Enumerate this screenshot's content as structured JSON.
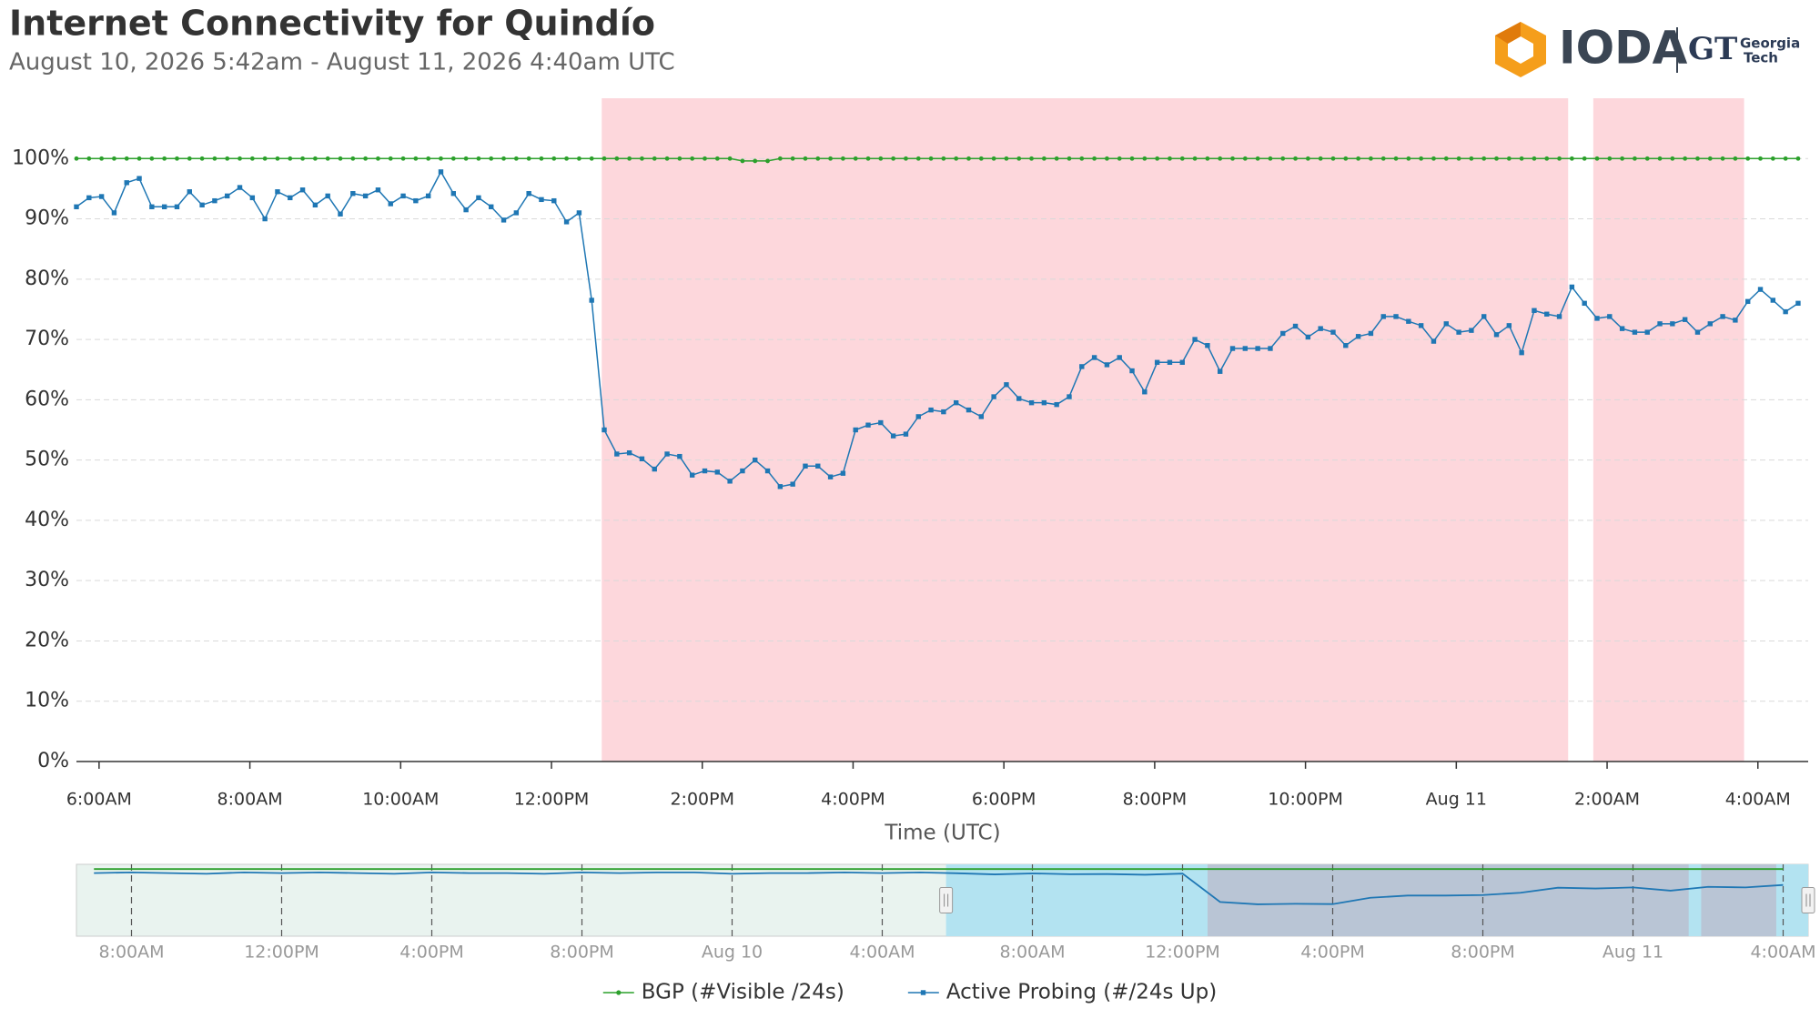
{
  "chart_data": [
    {
      "type": "line",
      "title": "Internet Connectivity for Quindío",
      "subtitle": "August 10, 2026 5:42am - August 11, 2026 4:40am UTC",
      "x_label": "Time (UTC)",
      "xlim": [
        342,
        1720
      ],
      "xticks": [
        {
          "value": 360,
          "label": "6:00AM"
        },
        {
          "value": 480,
          "label": "8:00AM"
        },
        {
          "value": 600,
          "label": "10:00AM"
        },
        {
          "value": 720,
          "label": "12:00PM"
        },
        {
          "value": 840,
          "label": "2:00PM"
        },
        {
          "value": 960,
          "label": "4:00PM"
        },
        {
          "value": 1080,
          "label": "6:00PM"
        },
        {
          "value": 1200,
          "label": "8:00PM"
        },
        {
          "value": 1320,
          "label": "10:00PM"
        },
        {
          "value": 1440,
          "label": "Aug 11"
        },
        {
          "value": 1560,
          "label": "2:00AM"
        },
        {
          "value": 1680,
          "label": "4:00AM"
        }
      ],
      "ylim": [
        0,
        110
      ],
      "yticks": [
        {
          "value": 0,
          "label": "0%"
        },
        {
          "value": 10,
          "label": "10%"
        },
        {
          "value": 20,
          "label": "20%"
        },
        {
          "value": 30,
          "label": "30%"
        },
        {
          "value": 40,
          "label": "40%"
        },
        {
          "value": 50,
          "label": "50%"
        },
        {
          "value": 60,
          "label": "60%"
        },
        {
          "value": 70,
          "label": "70%"
        },
        {
          "value": 80,
          "label": "80%"
        },
        {
          "value": 90,
          "label": "90%"
        },
        {
          "value": 100,
          "label": "100%"
        }
      ],
      "grid": true,
      "legend": "bottom",
      "shaded_ranges": [
        [
          760,
          1529
        ],
        [
          1549,
          1669
        ]
      ],
      "shade_color": "#fdd7dc",
      "x": [
        342,
        352,
        362,
        372,
        382,
        392,
        402,
        412,
        422,
        432,
        442,
        452,
        462,
        472,
        482,
        492,
        502,
        512,
        522,
        532,
        542,
        552,
        562,
        572,
        582,
        592,
        602,
        612,
        622,
        632,
        642,
        652,
        662,
        672,
        682,
        692,
        702,
        712,
        722,
        732,
        742,
        752,
        762,
        772,
        782,
        792,
        802,
        812,
        822,
        832,
        842,
        852,
        862,
        872,
        882,
        892,
        902,
        912,
        922,
        932,
        942,
        952,
        962,
        972,
        982,
        992,
        1002,
        1012,
        1022,
        1032,
        1042,
        1052,
        1062,
        1072,
        1082,
        1092,
        1102,
        1112,
        1122,
        1132,
        1142,
        1152,
        1162,
        1172,
        1182,
        1192,
        1202,
        1212,
        1222,
        1232,
        1242,
        1252,
        1262,
        1272,
        1282,
        1292,
        1302,
        1312,
        1322,
        1332,
        1342,
        1352,
        1362,
        1372,
        1382,
        1392,
        1402,
        1412,
        1422,
        1432,
        1442,
        1452,
        1462,
        1472,
        1482,
        1492,
        1502,
        1512,
        1522,
        1532,
        1542,
        1552,
        1562,
        1572,
        1582,
        1592,
        1602,
        1612,
        1622,
        1632,
        1642,
        1652,
        1662,
        1672,
        1682,
        1692,
        1702,
        1712
      ],
      "series": [
        {
          "name": "BGP (#Visible /24s)",
          "color": "#2ca02c",
          "marker": "circle",
          "values": [
            100,
            100,
            100,
            100,
            100,
            100,
            100,
            100,
            100,
            100,
            100,
            100,
            100,
            100,
            100,
            100,
            100,
            100,
            100,
            100,
            100,
            100,
            100,
            100,
            100,
            100,
            100,
            100,
            100,
            100,
            100,
            100,
            100,
            100,
            100,
            100,
            100,
            100,
            100,
            100,
            100,
            100,
            100,
            100,
            100,
            100,
            100,
            100,
            100,
            100,
            100,
            100,
            100,
            99.6,
            99.6,
            99.6,
            100,
            100,
            100,
            100,
            100,
            100,
            100,
            100,
            100,
            100,
            100,
            100,
            100,
            100,
            100,
            100,
            100,
            100,
            100,
            100,
            100,
            100,
            100,
            100,
            100,
            100,
            100,
            100,
            100,
            100,
            100,
            100,
            100,
            100,
            100,
            100,
            100,
            100,
            100,
            100,
            100,
            100,
            100,
            100,
            100,
            100,
            100,
            100,
            100,
            100,
            100,
            100,
            100,
            100,
            100,
            100,
            100,
            100,
            100,
            100,
            100,
            100,
            100,
            100,
            100,
            100,
            100,
            100,
            100,
            100,
            100,
            100,
            100,
            100,
            100,
            100,
            100,
            100,
            100,
            100,
            100,
            100
          ]
        },
        {
          "name": "Active Probing (#/24s Up)",
          "color": "#1f77b4",
          "marker": "square",
          "values": [
            92,
            93.5,
            93.7,
            91,
            96,
            96.7,
            92,
            92,
            92,
            94.5,
            92.3,
            93,
            93.8,
            95.2,
            93.5,
            90,
            94.5,
            93.5,
            94.8,
            92.3,
            93.8,
            90.8,
            94.2,
            93.8,
            94.8,
            92.5,
            93.8,
            93,
            93.8,
            97.8,
            94.2,
            91.5,
            93.5,
            92,
            89.8,
            91,
            94.2,
            93.2,
            93,
            89.5,
            91,
            76.5,
            55,
            51,
            51.2,
            50.2,
            48.5,
            51,
            50.6,
            47.5,
            48.2,
            48,
            46.5,
            48.2,
            50,
            48.2,
            45.6,
            46,
            49,
            49,
            47.2,
            47.8,
            55,
            55.8,
            56.2,
            54,
            54.3,
            57.2,
            58.3,
            58,
            59.5,
            58.3,
            57.2,
            60.5,
            62.5,
            60.2,
            59.5,
            59.5,
            59.2,
            60.5,
            65.5,
            67,
            65.8,
            67,
            64.8,
            61.3,
            66.2,
            66.2,
            66.2,
            70,
            69,
            64.7,
            68.5,
            68.5,
            68.5,
            68.5,
            71,
            72.2,
            70.4,
            71.8,
            71.2,
            69,
            70.5,
            71,
            73.8,
            73.8,
            73,
            72.3,
            69.7,
            72.6,
            71.2,
            71.5,
            73.8,
            70.8,
            72.3,
            67.8,
            74.8,
            74.2,
            73.8,
            78.7,
            76,
            73.5,
            73.8,
            71.8,
            71.2,
            71.2,
            72.6,
            72.6,
            73.3,
            71.2,
            72.6,
            73.8,
            73.2,
            76.3,
            78.3,
            76.5,
            74.6,
            76
          ]
        }
      ]
    },
    {
      "type": "navigator",
      "xlim": [
        -1048,
        1720
      ],
      "xticks": [
        {
          "value": -960,
          "label": "8:00AM"
        },
        {
          "value": -720,
          "label": "12:00PM"
        },
        {
          "value": -480,
          "label": "4:00PM"
        },
        {
          "value": -240,
          "label": "8:00PM"
        },
        {
          "value": 0,
          "label": "Aug 10"
        },
        {
          "value": 240,
          "label": "4:00AM"
        },
        {
          "value": 480,
          "label": "8:00AM"
        },
        {
          "value": 720,
          "label": "12:00PM"
        },
        {
          "value": 960,
          "label": "4:00PM"
        },
        {
          "value": 1200,
          "label": "8:00PM"
        },
        {
          "value": 1440,
          "label": "Aug 11"
        },
        {
          "value": 1680,
          "label": "4:00AM"
        }
      ],
      "ylim": [
        0,
        107
      ],
      "background": "#e9f3ef",
      "selection_color": "#b3e3f1",
      "shade_color": "#b9c5d5",
      "x": [
        -1020,
        -960,
        -900,
        -840,
        -780,
        -720,
        -660,
        -600,
        -540,
        -480,
        -420,
        -360,
        -300,
        -240,
        -180,
        -120,
        -60,
        0,
        60,
        120,
        180,
        240,
        300,
        360,
        420,
        480,
        540,
        600,
        660,
        720,
        780,
        840,
        900,
        960,
        1020,
        1080,
        1140,
        1200,
        1260,
        1320,
        1380,
        1440,
        1500,
        1560,
        1620,
        1680
      ],
      "series": [
        {
          "color": "#2ca02c",
          "values": [
            100,
            100,
            100,
            100,
            100,
            100,
            100,
            100,
            100,
            100,
            100,
            100,
            100,
            100,
            100,
            100,
            100,
            100,
            100,
            100,
            100,
            100,
            100,
            100,
            100,
            100,
            100,
            100,
            100,
            100,
            100,
            100,
            100,
            100,
            100,
            100,
            100,
            100,
            100,
            100,
            100,
            100,
            100,
            100,
            100,
            100
          ]
        },
        {
          "color": "#1f77b4",
          "values": [
            94,
            95,
            94,
            93,
            95,
            94,
            95,
            94,
            93,
            95,
            94,
            94,
            93,
            95,
            94,
            95,
            95,
            93,
            94,
            94,
            95,
            94,
            95,
            93.7,
            92,
            93.5,
            92.3,
            92.5,
            91.5,
            93.2,
            51,
            47.5,
            48.2,
            47.8,
            57.2,
            60.5,
            60.5,
            61.3,
            64.7,
            72.2,
            71,
            72.6,
            67.8,
            73.5,
            72.6,
            76.3
          ]
        }
      ]
    }
  ],
  "logo": {
    "name": "IODA",
    "monogram": "GT",
    "partner": [
      "Georgia",
      "Tech"
    ]
  }
}
